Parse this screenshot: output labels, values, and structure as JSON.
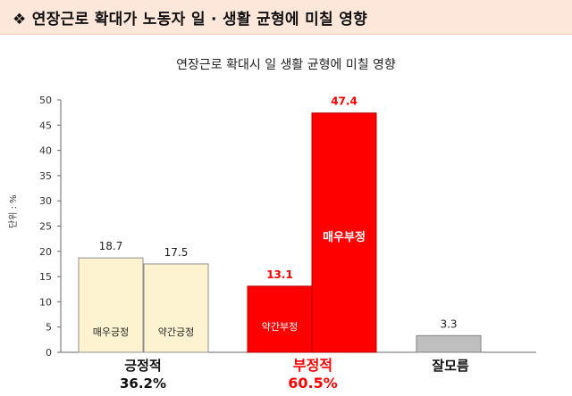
{
  "banner": {
    "bullet": "❖",
    "title": "연장근로 확대가 노동자 일 · 생활 균형에 미칠 영향"
  },
  "unit_label": "단위 : %",
  "colors": {
    "positive": "#fdf3d0",
    "negative": "#ff0000",
    "neutral": "#bfbfbf",
    "negative_text": "#ff0000"
  },
  "chart_data": {
    "type": "bar",
    "title": "연장근로 확대시 일 생활 균형에 미칠 영향",
    "ylabel": "단위 : %",
    "ylim": [
      0,
      50
    ],
    "yticks": [
      0,
      5,
      10,
      15,
      20,
      25,
      30,
      35,
      40,
      45,
      50
    ],
    "bars": [
      {
        "label": "매우긍정",
        "value": 18.7,
        "value_text": "18.7",
        "group": "positive"
      },
      {
        "label": "약간긍정",
        "value": 17.5,
        "value_text": "17.5",
        "group": "positive"
      },
      {
        "label": "약간부정",
        "value": 13.1,
        "value_text": "13.1",
        "group": "negative"
      },
      {
        "label": "매우부정",
        "value": 47.4,
        "value_text": "47.4",
        "group": "negative"
      },
      {
        "label": "",
        "value": 3.3,
        "value_text": "3.3",
        "group": "neutral"
      }
    ],
    "groups": [
      {
        "name": "긍정적",
        "total": "36.2%"
      },
      {
        "name": "부정적",
        "total": "60.5%"
      },
      {
        "name": "잘모름",
        "total": ""
      }
    ]
  }
}
